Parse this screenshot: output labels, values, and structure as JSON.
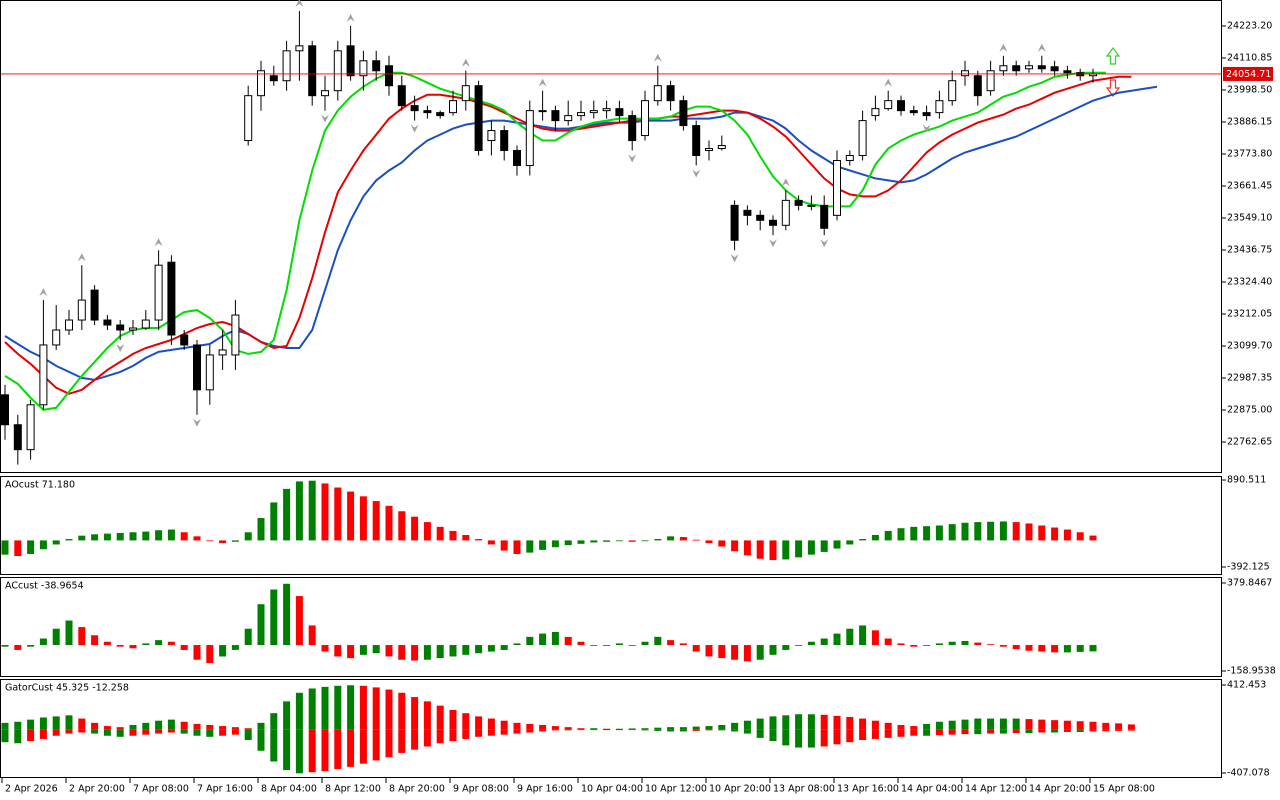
{
  "chart_data": [
    {
      "type": "candlestick",
      "categories": [
        "2 Apr 2026",
        null,
        null,
        null,
        null,
        "2 Apr 20:00",
        null,
        null,
        null,
        null,
        "7 Apr 08:00",
        null,
        null,
        null,
        null,
        "7 Apr 16:00",
        null,
        null,
        null,
        null,
        "8 Apr 04:00",
        null,
        null,
        null,
        null,
        "8 Apr 12:00",
        null,
        null,
        null,
        null,
        "8 Apr 20:00",
        null,
        null,
        null,
        null,
        "9 Apr 08:00",
        null,
        null,
        null,
        null,
        "9 Apr 16:00",
        null,
        null,
        null,
        null,
        "10 Apr 04:00",
        null,
        null,
        null,
        null,
        "10 Apr 12:00",
        null,
        null,
        null,
        null,
        "10 Apr 20:00",
        null,
        null,
        null,
        null,
        "13 Apr 08:00",
        null,
        null,
        null,
        null,
        "13 Apr 16:00",
        null,
        null,
        null,
        null,
        "14 Apr 04:00",
        null,
        null,
        null,
        null,
        "14 Apr 12:00",
        null,
        null,
        null,
        null,
        "14 Apr 20:00",
        null,
        null,
        null,
        null,
        "15 Apr 08:00",
        null,
        null,
        null,
        null,
        null
      ],
      "open": [
        22928.5,
        22823.5,
        22736,
        22893.5,
        23103.5,
        23156,
        23191,
        23296,
        23191,
        23173.5,
        23156,
        23163,
        23191,
        23394,
        23138.5,
        23103.5,
        22946,
        23068.5,
        23068.5,
        23821,
        23978.5,
        24048.5,
        24031,
        24136,
        24153.5,
        23978.5,
        23996,
        24153.5,
        24048.5,
        24101,
        24083.5,
        24013.5,
        23943.5,
        23926,
        23919,
        23919,
        23961,
        24013.5,
        23821,
        23856,
        23786,
        23733.5,
        23926,
        23926,
        23891,
        23908.5,
        23919,
        23926,
        23933,
        23908.5,
        23838.5,
        23961,
        24013.5,
        23961,
        23873.5,
        23786,
        23793,
        23593.5,
        23576,
        23558.5,
        23541,
        23523.5,
        23611,
        23593.5,
        23593.5,
        23558.5,
        23751,
        23768.5,
        23908.5,
        23933,
        23961,
        23926,
        23919,
        23919,
        23961,
        24048.5,
        24048.5,
        23996,
        24066,
        24083.5,
        24073,
        24083.5,
        24080,
        24066,
        24059,
        24048.5,
        null,
        null,
        null,
        null,
        null
      ],
      "high": [
        22963.5,
        22858.5,
        22911,
        23261,
        23243.5,
        23226,
        23383.5,
        23313.5,
        23208.5,
        23191,
        23191,
        23226,
        23436,
        23418.5,
        23156,
        23121,
        23103.5,
        23156,
        23261,
        24013.5,
        24101,
        24083.5,
        24171,
        24276,
        24171,
        24048.5,
        24171,
        24223.5,
        24136,
        24136,
        24118.5,
        24048.5,
        23978.5,
        23943.5,
        23926,
        23996,
        24066,
        24031,
        23891,
        23873.5,
        23803.5,
        23961,
        23996,
        23943.5,
        23961,
        23961,
        23961,
        23961,
        23961,
        23926,
        23996,
        24083.5,
        24031,
        23978.5,
        23891,
        23821,
        23838.5,
        23611,
        23593.5,
        23576,
        23558.5,
        23646,
        23628.5,
        23628.5,
        23628.5,
        23786,
        23786,
        23926,
        23978.5,
        23996,
        23978.5,
        23943.5,
        23943.5,
        23996,
        24066,
        24101,
        24066,
        24101,
        24118.5,
        24101,
        24101,
        24118.5,
        24101,
        24083.5,
        24073,
        24073,
        null,
        null,
        null,
        null,
        null
      ],
      "low": [
        22771,
        22683.5,
        22701,
        22876,
        23086,
        23138.5,
        23156,
        23173.5,
        23156,
        23121,
        23138.5,
        23156,
        23156,
        23103.5,
        23086,
        22858.5,
        22893.5,
        23016,
        23016,
        23803.5,
        23926,
        24013.5,
        23996,
        24031,
        23943.5,
        23926,
        23961,
        24031,
        23996,
        24031,
        23978.5,
        23926,
        23891,
        23898,
        23898,
        23908.5,
        23926,
        23768.5,
        23768.5,
        23751,
        23698.5,
        23698.5,
        23891,
        23856,
        23873.5,
        23891,
        23898,
        23898,
        23884,
        23786,
        23821,
        23943.5,
        23926,
        23856,
        23733.5,
        23751,
        23786,
        23436,
        23523.5,
        23506,
        23488.5,
        23506,
        23576,
        23576,
        23488.5,
        23541,
        23733.5,
        23751,
        23891,
        23926,
        23908.5,
        23908.5,
        23891,
        23898,
        23943.5,
        24013.5,
        23943.5,
        23978.5,
        24048.5,
        24048.5,
        24059,
        24059,
        24048.5,
        24038,
        24031,
        24024,
        null,
        null,
        null,
        null,
        null
      ],
      "close": [
        22823.5,
        22736,
        22893.5,
        23103.5,
        23156,
        23191,
        23261,
        23191,
        23173.5,
        23156,
        23163,
        23191,
        23383.5,
        23138.5,
        23103.5,
        22946,
        23068.5,
        23086,
        23208.5,
        23978.5,
        24066,
        24031,
        24136,
        24153.5,
        23978.5,
        23996,
        24136,
        24048.5,
        24101,
        24066,
        24013.5,
        23943.5,
        23926,
        23919,
        23908.5,
        23961,
        24013.5,
        23786,
        23856,
        23786,
        23733.5,
        23926,
        23926,
        23891,
        23908.5,
        23919,
        23926,
        23933,
        23908.5,
        23821,
        23961,
        24013.5,
        23961,
        23873.5,
        23768.5,
        23793,
        23803.5,
        23471,
        23558.5,
        23541,
        23523.5,
        23611,
        23593.5,
        23593.5,
        23513,
        23751,
        23768.5,
        23891,
        23933,
        23961,
        23926,
        23919,
        23908.5,
        23961,
        24031,
        24066,
        23978.5,
        24066,
        24083.5,
        24066,
        24083.5,
        24073,
        24066,
        24059,
        24048.5,
        24054.71,
        null,
        null,
        null,
        null,
        null
      ],
      "up_color": "#ffffff",
      "down_color": "#000000",
      "wick_color": "#000000",
      "fractal_color": "#a0a0a0",
      "series": [
        {
          "color": "#1a4fc4",
          "values": [
            23135,
            23107,
            23079,
            23058,
            23030,
            23009,
            22988,
            22981,
            22995,
            23009,
            23030,
            23058,
            23079,
            23086,
            23093,
            23100,
            23107,
            23135,
            23156,
            23142,
            23114,
            23100,
            23093,
            23093,
            23156,
            23296,
            23436,
            23541,
            23625,
            23681,
            23716,
            23744,
            23786,
            23821,
            23842,
            23863,
            23877,
            23884,
            23891,
            23891,
            23884,
            23877,
            23870,
            23863,
            23863,
            23870,
            23877,
            23884,
            23884,
            23884,
            23891,
            23891,
            23891,
            23898,
            23898,
            23898,
            23905,
            23919,
            23919,
            23905,
            23891,
            23863,
            23821,
            23786,
            23758,
            23730,
            23716,
            23702,
            23688,
            23681,
            23674,
            23681,
            23702,
            23730,
            23758,
            23779,
            23793,
            23807,
            23821,
            23835,
            23856,
            23877,
            23898,
            23919,
            23940,
            23961,
            23975,
            23989,
            23996,
            24003,
            24010
          ]
        },
        {
          "color": "#e60000",
          "values": [
            23114,
            23072,
            23037,
            22995,
            22953,
            22932,
            22946,
            22981,
            23016,
            23044,
            23072,
            23093,
            23107,
            23121,
            23142,
            23163,
            23177,
            23184,
            23170,
            23142,
            23114,
            23093,
            23100,
            23198,
            23338,
            23499,
            23639,
            23716,
            23786,
            23842,
            23898,
            23933,
            23961,
            23982,
            23982,
            23975,
            23968,
            23954,
            23940,
            23919,
            23898,
            23877,
            23863,
            23856,
            23856,
            23863,
            23870,
            23877,
            23884,
            23891,
            23898,
            23898,
            23905,
            23905,
            23912,
            23919,
            23926,
            23926,
            23919,
            23898,
            23870,
            23835,
            23786,
            23737,
            23688,
            23653,
            23632,
            23625,
            23625,
            23646,
            23681,
            23730,
            23779,
            23814,
            23842,
            23863,
            23884,
            23898,
            23912,
            23933,
            23947,
            23968,
            23989,
            24003,
            24017,
            24031,
            24038,
            24045,
            24045,
            null,
            null
          ]
        },
        {
          "color": "#00dd00",
          "values": [
            22995,
            22967,
            22918,
            22876,
            22883,
            22939,
            22995,
            23044,
            23093,
            23135,
            23156,
            23163,
            23163,
            23191,
            23219,
            23226,
            23198,
            23156,
            23086,
            23072,
            23079,
            23121,
            23296,
            23541,
            23716,
            23856,
            23926,
            23975,
            24010,
            24038,
            24059,
            24059,
            24045,
            24024,
            24003,
            23989,
            23975,
            23961,
            23947,
            23926,
            23884,
            23849,
            23821,
            23821,
            23849,
            23870,
            23884,
            23891,
            23898,
            23898,
            23898,
            23898,
            23905,
            23926,
            23940,
            23940,
            23926,
            23891,
            23842,
            23765,
            23695,
            23646,
            23611,
            23597,
            23590,
            23590,
            23590,
            23646,
            23737,
            23793,
            23821,
            23842,
            23856,
            23870,
            23891,
            23905,
            23919,
            23947,
            23975,
            23989,
            24010,
            24024,
            24045,
            24052,
            24059,
            24059,
            24059,
            null,
            null,
            null,
            null
          ]
        }
      ],
      "bid": 24054.71,
      "bid_color": "#e60000",
      "ylim": [
        22657.6,
        24310.8
      ],
      "yticks": [
        {
          "value": 24223.2,
          "label": "24223.20"
        },
        24110.85,
        {
          "value": 23998.5,
          "label": "23998.50"
        },
        23886.15,
        {
          "value": 23773.8,
          "label": "23773.80"
        },
        23661.45,
        {
          "value": 23549.1,
          "label": "23549.10"
        },
        23436.75,
        {
          "value": 23324.4,
          "label": "23324.40"
        },
        23212.05,
        {
          "value": 23099.7,
          "label": "23099.70"
        },
        22987.35,
        {
          "value": 22875,
          "label": "22875.00"
        },
        22762.65
      ]
    },
    {
      "type": "bar",
      "title": "AOcust 71.180",
      "up_color": "#008000",
      "down_color": "#ff0000",
      "values": [
        -210,
        -230,
        -200,
        -130,
        -60,
        20,
        70,
        90,
        100,
        110,
        120,
        130,
        150,
        160,
        120,
        60,
        0,
        -40,
        -20,
        120,
        330,
        560,
        760,
        870,
        880,
        840,
        780,
        720,
        650,
        580,
        510,
        430,
        350,
        270,
        200,
        140,
        80,
        20,
        -60,
        -150,
        -200,
        -180,
        -140,
        -100,
        -70,
        -50,
        -30,
        -20,
        -10,
        -20,
        -10,
        20,
        60,
        50,
        10,
        -40,
        -90,
        -160,
        -220,
        -270,
        -290,
        -280,
        -250,
        -210,
        -170,
        -120,
        -60,
        20,
        80,
        140,
        180,
        200,
        210,
        220,
        240,
        260,
        270,
        275,
        280,
        270,
        250,
        220,
        190,
        160,
        120,
        71.18
      ],
      "ylim": [
        -510,
        935
      ],
      "yticks": [
        890.511,
        -392.125
      ]
    },
    {
      "type": "bar",
      "title": "ACcust -38.9654",
      "up_color": "#008000",
      "down_color": "#ff0000",
      "values": [
        -10,
        -30,
        -10,
        40,
        100,
        150,
        110,
        60,
        20,
        -10,
        -20,
        10,
        30,
        20,
        -30,
        -90,
        -110,
        -70,
        -30,
        100,
        250,
        340,
        375,
        300,
        120,
        -40,
        -70,
        -80,
        -60,
        -50,
        -70,
        -90,
        -95,
        -90,
        -80,
        -70,
        -60,
        -50,
        -40,
        -30,
        10,
        50,
        70,
        80,
        50,
        20,
        0,
        -5,
        10,
        0,
        20,
        50,
        30,
        10,
        -40,
        -70,
        -80,
        -90,
        -100,
        -90,
        -60,
        -30,
        0,
        20,
        40,
        70,
        100,
        120,
        90,
        40,
        10,
        -10,
        -5,
        10,
        20,
        25,
        15,
        5,
        -10,
        -25,
        -35,
        -40,
        -45,
        -45,
        -42,
        -38.9654
      ],
      "ylim": [
        -195.7,
        410.5
      ],
      "yticks": [
        379.8467,
        -158.9538
      ]
    },
    {
      "type": "gator",
      "title": "GatorCust 45.325 -12.258",
      "up_color": "#008000",
      "down_color": "#ff0000",
      "series": [
        {
          "values": [
            60,
            70,
            90,
            110,
            120,
            130,
            100,
            60,
            30,
            20,
            40,
            60,
            80,
            90,
            70,
            50,
            40,
            30,
            20,
            10,
            60,
            150,
            260,
            340,
            380,
            395,
            405,
            410,
            405,
            390,
            370,
            340,
            300,
            260,
            220,
            180,
            150,
            120,
            100,
            80,
            60,
            50,
            40,
            30,
            20,
            10,
            10,
            5,
            5,
            8,
            10,
            15,
            20,
            20,
            25,
            30,
            40,
            60,
            80,
            100,
            120,
            130,
            140,
            140,
            135,
            125,
            115,
            100,
            80,
            60,
            40,
            30,
            50,
            70,
            80,
            90,
            100,
            100,
            100,
            100,
            95,
            90,
            85,
            80,
            75,
            70,
            60,
            55,
            45.325
          ]
        },
        {
          "values": [
            -120,
            -130,
            -110,
            -90,
            -60,
            -40,
            -30,
            -40,
            -60,
            -70,
            -60,
            -50,
            -40,
            -30,
            -40,
            -60,
            -70,
            -60,
            -50,
            -100,
            -200,
            -300,
            -380,
            -410,
            -400,
            -390,
            -370,
            -350,
            -320,
            -290,
            -260,
            -220,
            -190,
            -160,
            -130,
            -110,
            -90,
            -70,
            -60,
            -50,
            -40,
            -30,
            -20,
            -10,
            -10,
            -5,
            -5,
            -5,
            -5,
            -5,
            -10,
            -15,
            -20,
            -20,
            -15,
            -10,
            -10,
            -20,
            -40,
            -80,
            -110,
            -150,
            -170,
            -170,
            -160,
            -140,
            -120,
            -100,
            -90,
            -80,
            -70,
            -60,
            -60,
            -55,
            -50,
            -45,
            -45,
            -40,
            -40,
            -35,
            -35,
            -30,
            -30,
            -25,
            -25,
            -20,
            -18,
            -15,
            -12.258
          ]
        }
      ],
      "ylim": [
        -453.6,
        459
      ],
      "yticks": [
        412.453,
        -407.078
      ]
    }
  ]
}
